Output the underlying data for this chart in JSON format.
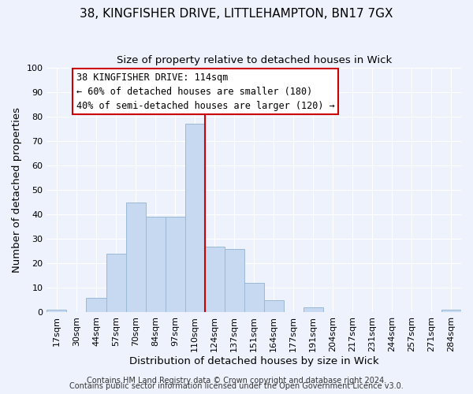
{
  "title": "38, KINGFISHER DRIVE, LITTLEHAMPTON, BN17 7GX",
  "subtitle": "Size of property relative to detached houses in Wick",
  "xlabel": "Distribution of detached houses by size in Wick",
  "ylabel": "Number of detached properties",
  "bar_labels": [
    "17sqm",
    "30sqm",
    "44sqm",
    "57sqm",
    "70sqm",
    "84sqm",
    "97sqm",
    "110sqm",
    "124sqm",
    "137sqm",
    "151sqm",
    "164sqm",
    "177sqm",
    "191sqm",
    "204sqm",
    "217sqm",
    "231sqm",
    "244sqm",
    "257sqm",
    "271sqm",
    "284sqm"
  ],
  "bar_heights": [
    1,
    0,
    6,
    24,
    45,
    39,
    39,
    77,
    27,
    26,
    12,
    5,
    0,
    2,
    0,
    0,
    0,
    0,
    0,
    0,
    1
  ],
  "bar_color": "#c6d9f0",
  "bar_edge_color": "#9ab8d8",
  "vline_color": "#cc0000",
  "ylim": [
    0,
    100
  ],
  "annotation_title": "38 KINGFISHER DRIVE: 114sqm",
  "annotation_line1": "← 60% of detached houses are smaller (180)",
  "annotation_line2": "40% of semi-detached houses are larger (120) →",
  "annotation_box_color": "#ffffff",
  "annotation_box_edge": "#cc0000",
  "footer1": "Contains HM Land Registry data © Crown copyright and database right 2024.",
  "footer2": "Contains public sector information licensed under the Open Government Licence v3.0.",
  "background_color": "#eef2fc",
  "grid_color": "#ffffff",
  "title_fontsize": 11,
  "subtitle_fontsize": 9.5,
  "axis_label_fontsize": 9.5,
  "tick_fontsize": 8,
  "annotation_fontsize": 8.5,
  "footer_fontsize": 7
}
